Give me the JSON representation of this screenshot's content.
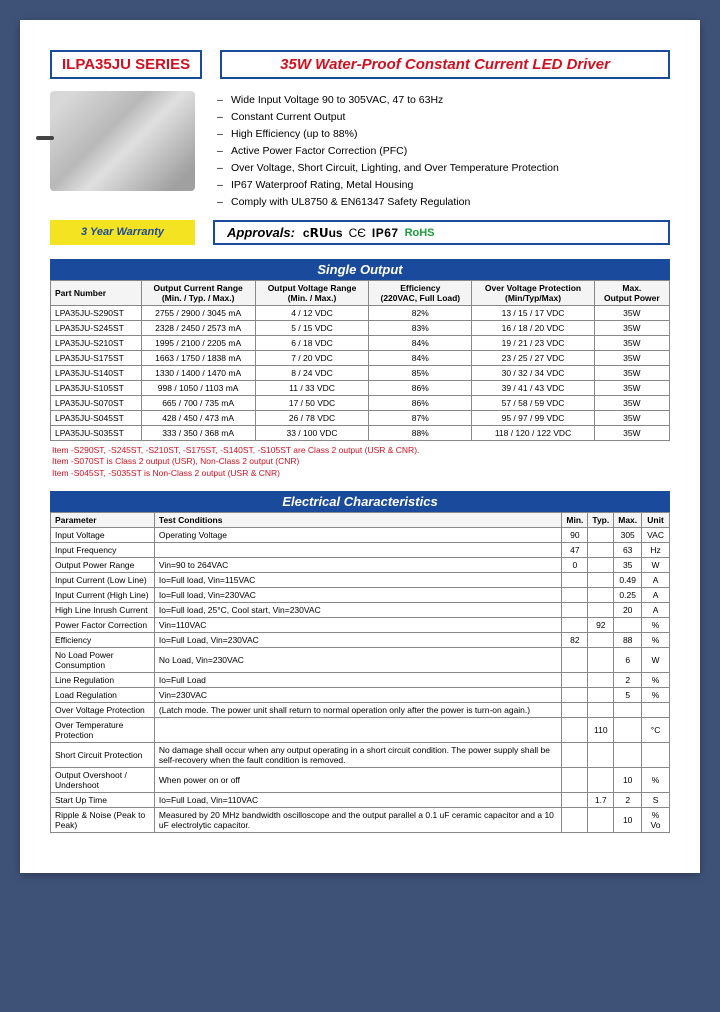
{
  "colors": {
    "page_bg": "#3e5278",
    "paper": "#ffffff",
    "border_blue": "#1a4a9c",
    "accent_red": "#d01020",
    "warranty_bg": "#f4e321",
    "rohs_green": "#1a9c3e",
    "table_border": "#888888",
    "th_bg": "#f4f4f4"
  },
  "typography": {
    "family": "Arial, sans-serif",
    "series_size": 15,
    "title_size": 15,
    "feature_size": 10.5,
    "table_size": 8.5
  },
  "header": {
    "series": "ILPA35JU SERIES",
    "title": "35W Water-Proof Constant Current LED Driver"
  },
  "features": [
    "Wide Input Voltage 90 to 305VAC, 47 to 63Hz",
    "Constant Current Output",
    "High Efficiency (up to 88%)",
    "Active Power Factor Correction (PFC)",
    "Over Voltage, Short Circuit, Lighting, and Over Temperature Protection",
    "IP67 Waterproof Rating, Metal Housing",
    "Comply with UL8750 & EN61347 Safety Regulation"
  ],
  "warranty": "3 Year Warranty",
  "approvals": {
    "label": "Approvals:",
    "badges": {
      "ru": "c𝗥𝗨us",
      "ce": "CЄ",
      "ip67": "IP67",
      "rohs": "RoHS"
    }
  },
  "single_output": {
    "title": "Single Output",
    "columns": [
      "Part Number",
      "Output Current Range\n(Min. / Typ. / Max.)",
      "Output Voltage Range\n(Min. / Max.)",
      "Efficiency\n(220VAC, Full Load)",
      "Over Voltage Protection\n(Min/Typ/Max)",
      "Max.\nOutput Power"
    ],
    "rows": [
      [
        "LPA35JU-S290ST",
        "2755 / 2900 / 3045 mA",
        "4 / 12 VDC",
        "82%",
        "13 / 15 / 17 VDC",
        "35W"
      ],
      [
        "LPA35JU-S245ST",
        "2328 / 2450 / 2573 mA",
        "5 / 15 VDC",
        "83%",
        "16 / 18 / 20 VDC",
        "35W"
      ],
      [
        "LPA35JU-S210ST",
        "1995 / 2100 / 2205 mA",
        "6 / 18 VDC",
        "84%",
        "19 / 21 / 23 VDC",
        "35W"
      ],
      [
        "LPA35JU-S175ST",
        "1663 / 1750 / 1838 mA",
        "7 / 20 VDC",
        "84%",
        "23 / 25 / 27 VDC",
        "35W"
      ],
      [
        "LPA35JU-S140ST",
        "1330 / 1400 / 1470 mA",
        "8 / 24 VDC",
        "85%",
        "30 / 32 / 34 VDC",
        "35W"
      ],
      [
        "LPA35JU-S105ST",
        "998 / 1050 / 1103 mA",
        "11 / 33 VDC",
        "86%",
        "39 / 41 / 43 VDC",
        "35W"
      ],
      [
        "LPA35JU-S070ST",
        "665 / 700 / 735 mA",
        "17 / 50 VDC",
        "86%",
        "57 / 58 / 59 VDC",
        "35W"
      ],
      [
        "LPA35JU-S045ST",
        "428 / 450 / 473 mA",
        "26 / 78 VDC",
        "87%",
        "95 / 97 / 99 VDC",
        "35W"
      ],
      [
        "LPA35JU-S035ST",
        "333 / 350 / 368 mA",
        "33 / 100 VDC",
        "88%",
        "118 / 120 / 122 VDC",
        "35W"
      ]
    ],
    "notes": [
      "Item -S290ST, -S245ST, -S210ST, -S175ST, -S140ST, -S105ST are Class 2 output (USR & CNR).",
      "Item -S070ST is Class 2 output (USR), Non-Class 2 output (CNR)",
      "Item -S045ST, -S035ST is Non-Class 2 output (USR & CNR)"
    ]
  },
  "electrical": {
    "title": "Electrical Characteristics",
    "columns": [
      "Parameter",
      "Test Conditions",
      "Min.",
      "Typ.",
      "Max.",
      "Unit"
    ],
    "rows": [
      [
        "Input Voltage",
        "Operating Voltage",
        "90",
        "",
        "305",
        "VAC"
      ],
      [
        "Input Frequency",
        "",
        "47",
        "",
        "63",
        "Hz"
      ],
      [
        "Output Power Range",
        "Vin=90 to 264VAC",
        "0",
        "",
        "35",
        "W"
      ],
      [
        "Input Current (Low Line)",
        "Io=Full load, Vin=115VAC",
        "",
        "",
        "0.49",
        "A"
      ],
      [
        "Input Current (High Line)",
        "Io=Full load, Vin=230VAC",
        "",
        "",
        "0.25",
        "A"
      ],
      [
        "High Line Inrush Current",
        "Io=Full load, 25°C, Cool start, Vin=230VAC",
        "",
        "",
        "20",
        "A"
      ],
      [
        "Power Factor Correction",
        "Vin=110VAC",
        "",
        "92",
        "",
        "%"
      ],
      [
        "Efficiency",
        "Io=Full Load, Vin=230VAC",
        "82",
        "",
        "88",
        "%"
      ],
      [
        "No Load Power Consumption",
        "No Load, Vin=230VAC",
        "",
        "",
        "6",
        "W"
      ],
      [
        "Line Regulation",
        "Io=Full Load",
        "",
        "",
        "2",
        "%"
      ],
      [
        "Load Regulation",
        "Vin=230VAC",
        "",
        "",
        "5",
        "%"
      ],
      [
        "Over Voltage Protection",
        "(Latch mode. The power unit shall return to normal operation only after the power is turn-on again.)",
        "",
        "",
        "",
        ""
      ],
      [
        "Over Temperature Protection",
        "",
        "",
        "110",
        "",
        "°C"
      ],
      [
        "Short Circuit Protection",
        "No damage shall occur when any output operating in a short circuit condition. The power supply shall be self-recovery when the fault condition is removed.",
        "",
        "",
        "",
        ""
      ],
      [
        "Output Overshoot / Undershoot",
        "When power on or off",
        "",
        "",
        "10",
        "%"
      ],
      [
        "Start Up Time",
        "Io=Full Load, Vin=110VAC",
        "",
        "1.7",
        "2",
        "S"
      ],
      [
        "Ripple & Noise (Peak to Peak)",
        "Measured by 20 MHz bandwidth oscilloscope and the output parallel a 0.1 uF ceramic capacitor and a 10 uF electrolytic capacitor.",
        "",
        "",
        "10",
        "% Vo"
      ]
    ]
  }
}
